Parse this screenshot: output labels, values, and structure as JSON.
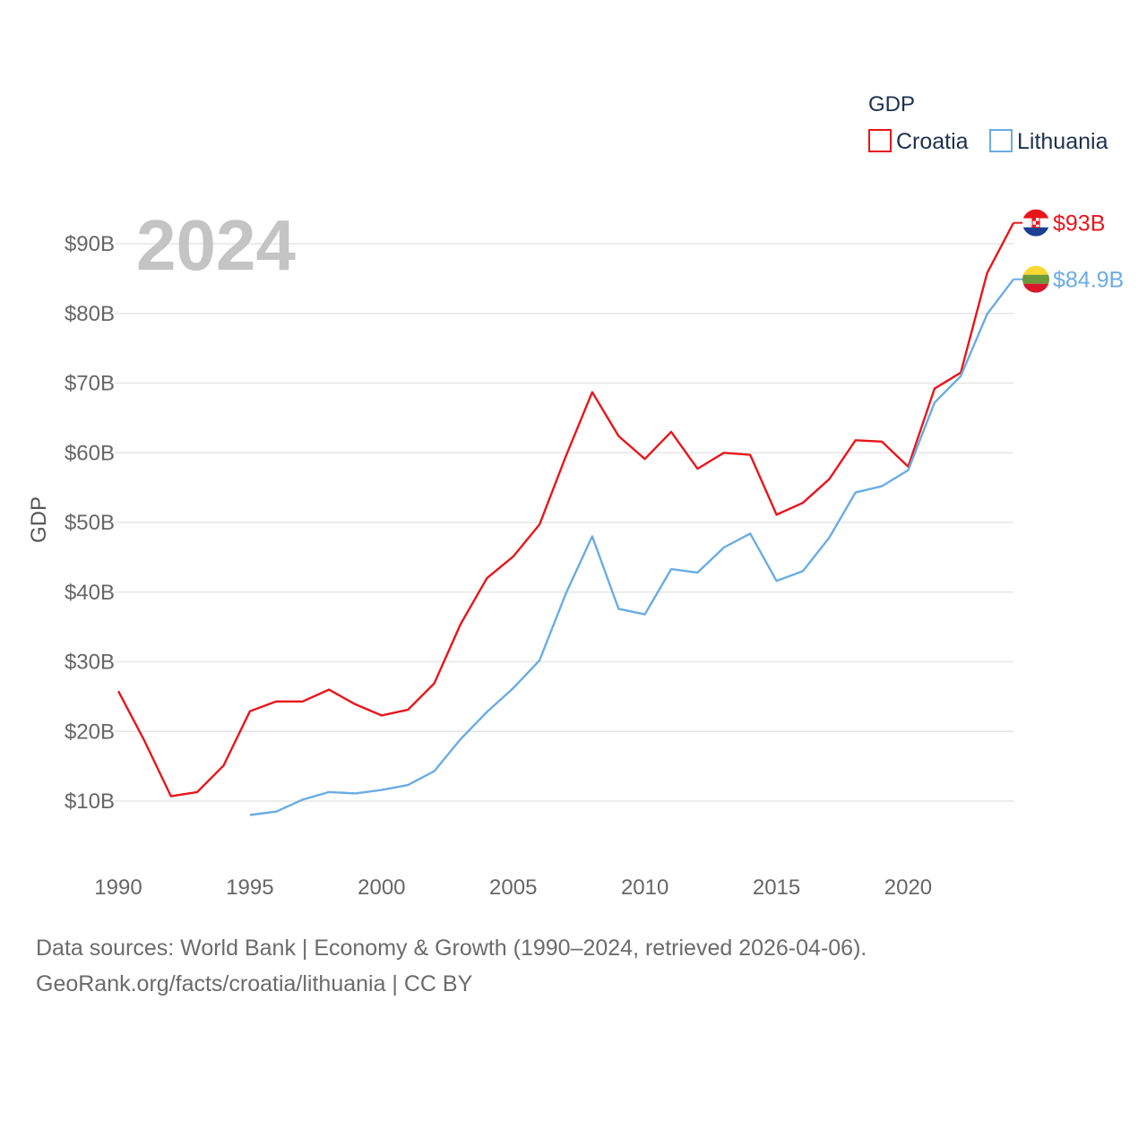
{
  "chart_data": {
    "type": "line",
    "title": "2024",
    "ylabel": "GDP",
    "xlabel": "",
    "xlim": [
      1990,
      2024
    ],
    "ylim": [
      0,
      95
    ],
    "y_unit": "billion USD",
    "y_ticks": [
      10,
      20,
      30,
      40,
      50,
      60,
      70,
      80,
      90
    ],
    "y_tick_labels": [
      "$10B",
      "$20B",
      "$30B",
      "$40B",
      "$50B",
      "$60B",
      "$70B",
      "$80B",
      "$90B"
    ],
    "x_ticks": [
      1990,
      1995,
      2000,
      2005,
      2010,
      2015,
      2020
    ],
    "x_tick_labels": [
      "1990",
      "1995",
      "2000",
      "2005",
      "2010",
      "2015",
      "2020"
    ],
    "grid": true,
    "legend": {
      "title": "GDP",
      "placement": "top-right"
    },
    "series": [
      {
        "name": "Croatia",
        "color": "#e8161b",
        "end_label": "$93B",
        "flag": "croatia-flag",
        "x": [
          1990,
          1991,
          1992,
          1993,
          1994,
          1995,
          1996,
          1997,
          1998,
          1999,
          2000,
          2001,
          2002,
          2003,
          2004,
          2005,
          2006,
          2007,
          2008,
          2009,
          2010,
          2011,
          2012,
          2013,
          2014,
          2015,
          2016,
          2017,
          2018,
          2019,
          2020,
          2021,
          2022,
          2023,
          2024
        ],
        "values": [
          25.8,
          18.6,
          10.7,
          11.3,
          15.1,
          22.9,
          24.3,
          24.3,
          26.0,
          23.9,
          22.3,
          23.1,
          26.9,
          35.4,
          42.0,
          45.1,
          49.7,
          59.5,
          68.7,
          62.4,
          59.1,
          63.0,
          57.7,
          60.0,
          59.7,
          51.1,
          52.8,
          56.2,
          61.8,
          61.6,
          58.0,
          69.2,
          71.5,
          85.8,
          93.0
        ]
      },
      {
        "name": "Lithuania",
        "color": "#6aace4",
        "end_label": "$84.9B",
        "flag": "lithuania-flag",
        "x": [
          1995,
          1996,
          1997,
          1998,
          1999,
          2000,
          2001,
          2002,
          2003,
          2004,
          2005,
          2006,
          2007,
          2008,
          2009,
          2010,
          2011,
          2012,
          2013,
          2014,
          2015,
          2016,
          2017,
          2018,
          2019,
          2020,
          2021,
          2022,
          2023,
          2024
        ],
        "values": [
          8.0,
          8.5,
          10.2,
          11.3,
          11.1,
          11.6,
          12.3,
          14.3,
          18.9,
          22.8,
          26.2,
          30.2,
          39.8,
          48.0,
          37.6,
          36.8,
          43.3,
          42.8,
          46.4,
          48.4,
          41.6,
          43.0,
          47.8,
          54.3,
          55.2,
          57.5,
          67.2,
          71.0,
          79.9,
          84.9
        ]
      }
    ]
  },
  "footer": {
    "line1": "Data sources: World Bank | Economy & Growth (1990–2024, retrieved 2026-04-06).",
    "line2": "GeoRank.org/facts/croatia/lithuania | CC BY"
  }
}
